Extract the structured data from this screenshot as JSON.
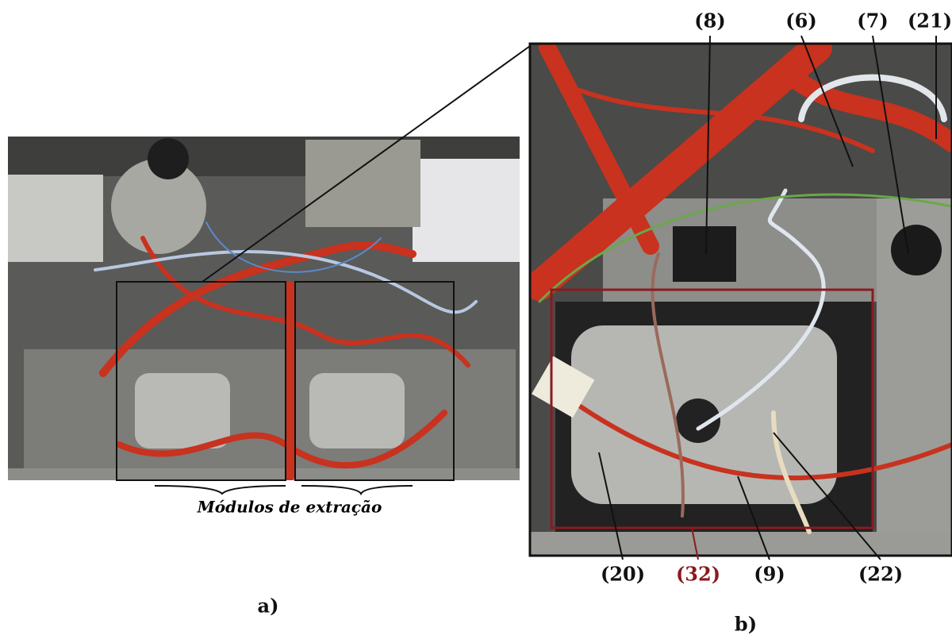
{
  "panel_a": {
    "caption": "Módulos de extração",
    "label": "a)"
  },
  "panel_b": {
    "label": "b)",
    "top_callouts": [
      "(8)",
      "(6)",
      "(7)",
      "(21)"
    ],
    "bottom_callouts": [
      "(20)",
      "(32)",
      "(9)",
      "(22)"
    ]
  }
}
